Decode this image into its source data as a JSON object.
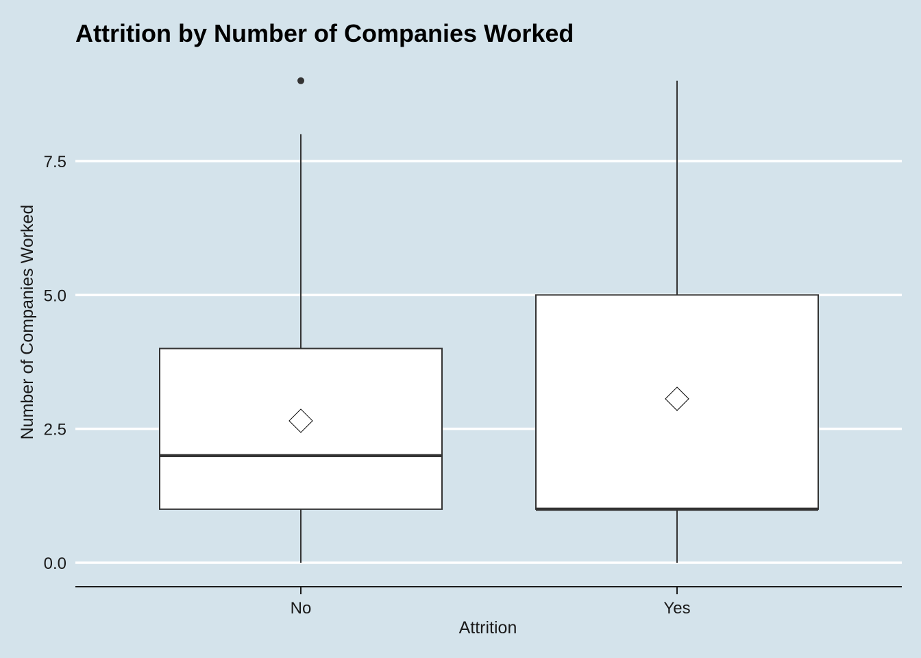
{
  "chart_data": {
    "type": "box",
    "title": "Attrition by Number of Companies Worked",
    "xlabel": "Attrition",
    "ylabel": "Number of Companies Worked",
    "categories": [
      "No",
      "Yes"
    ],
    "ylim": [
      -0.45,
      9.4
    ],
    "yticks": [
      0,
      2.5,
      5,
      7.5
    ],
    "ytick_labels": [
      "0.0",
      "2.5",
      "5.0",
      "7.5"
    ],
    "boxes": [
      {
        "category": "No",
        "min": 0,
        "q1": 1,
        "median": 2,
        "q3": 4,
        "max": 8,
        "mean": 2.65,
        "outliers": [
          9
        ]
      },
      {
        "category": "Yes",
        "min": 0,
        "q1": 1,
        "median": 1,
        "q3": 5,
        "max": 9,
        "mean": 3.06,
        "outliers": []
      }
    ],
    "grid": {
      "horizontal_major": true,
      "vertical": false
    },
    "colors": {
      "background": "#d4e3eb",
      "box_fill": "#ffffff",
      "box_line": "#333333",
      "grid": "#ffffff"
    }
  }
}
